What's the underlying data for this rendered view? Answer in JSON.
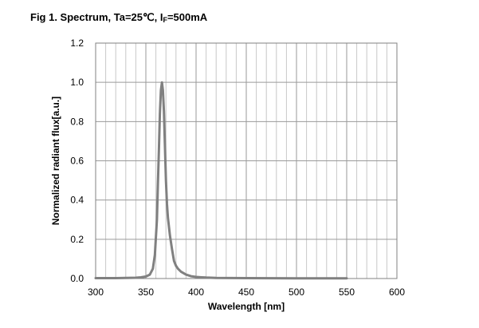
{
  "figure": {
    "title_prefix": "Fig 1. Spectrum, Ta=25℃, I",
    "title_sub": "F",
    "title_suffix": "=500mA"
  },
  "chart_data": {
    "type": "line",
    "title": "Fig 1. Spectrum, Ta=25℃, IF=500mA",
    "xlabel": "Wavelength [nm]",
    "ylabel": "Normalized radiant flux[a.u.]",
    "xlim": [
      300,
      600
    ],
    "ylim": [
      0,
      1.2
    ],
    "xticks": [
      300,
      350,
      400,
      450,
      500,
      550,
      600
    ],
    "xtick_labels": [
      "300",
      "350",
      "400",
      "450",
      "500",
      "550",
      "600"
    ],
    "yticks": [
      0,
      0.2,
      0.4,
      0.6,
      0.8,
      1.0,
      1.2
    ],
    "ytick_labels": [
      "0.0",
      "0.2",
      "0.4",
      "0.6",
      "0.8",
      "1.0",
      "1.2"
    ],
    "minor_x_step": 10,
    "grid": true,
    "line_color": "#808080",
    "series": [
      {
        "x": [
          300,
          320,
          340,
          345,
          350,
          354,
          357,
          359,
          361,
          362,
          363,
          364,
          365,
          366,
          367,
          368,
          369,
          370,
          371,
          372,
          374,
          376,
          378,
          380,
          382,
          385,
          390,
          395,
          400,
          410,
          420,
          450,
          500,
          550
        ],
        "y": [
          0.002,
          0.002,
          0.004,
          0.006,
          0.01,
          0.02,
          0.05,
          0.12,
          0.3,
          0.48,
          0.66,
          0.84,
          0.96,
          1.0,
          0.96,
          0.85,
          0.68,
          0.5,
          0.38,
          0.31,
          0.22,
          0.15,
          0.09,
          0.065,
          0.05,
          0.035,
          0.02,
          0.012,
          0.008,
          0.005,
          0.003,
          0.002,
          0.001,
          0.001
        ]
      }
    ]
  }
}
